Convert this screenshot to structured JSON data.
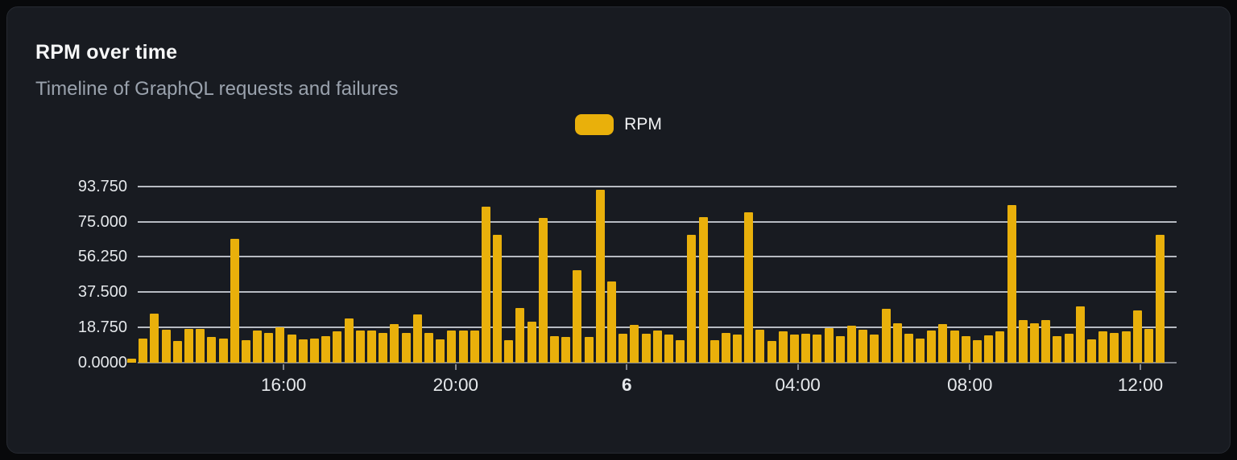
{
  "page": {
    "background_color": "#08090b"
  },
  "card": {
    "title": "RPM over time",
    "subtitle": "Timeline of GraphQL requests and failures",
    "background_color": "#181b21",
    "border_color": "#262a31"
  },
  "legend": {
    "label": "RPM",
    "swatch_color": "#e9b00b",
    "position": "top-center"
  },
  "chart_data": {
    "type": "bar",
    "title": "RPM over time",
    "subtitle": "Timeline of GraphQL requests and failures",
    "xlabel": "",
    "ylabel": "",
    "grid": "horizontal",
    "legend_position": "top-center",
    "bar_color": "#e9b00b",
    "gridline_color": "rgba(211,215,222,0.85)",
    "axis_color": "#82868e",
    "ylim": [
      0,
      96
    ],
    "y_ticks": [
      {
        "label": "0.0000",
        "value": 0
      },
      {
        "label": "18.750",
        "value": 18.75
      },
      {
        "label": "37.500",
        "value": 37.5
      },
      {
        "label": "56.250",
        "value": 56.25
      },
      {
        "label": "75.000",
        "value": 75
      },
      {
        "label": "93.750",
        "value": 93.75
      }
    ],
    "x_ticks": [
      {
        "label": "16:00",
        "pos": 0.149,
        "bold": false
      },
      {
        "label": "20:00",
        "pos": 0.313,
        "bold": false
      },
      {
        "label": "6",
        "pos": 0.476,
        "bold": true
      },
      {
        "label": "04:00",
        "pos": 0.639,
        "bold": false
      },
      {
        "label": "08:00",
        "pos": 0.803,
        "bold": false
      },
      {
        "label": "12:00",
        "pos": 0.9655,
        "bold": false
      }
    ],
    "series": [
      {
        "name": "RPM",
        "values": [
          2,
          13,
          26,
          17.5,
          11.5,
          18,
          18,
          13.5,
          13,
          66,
          12,
          17,
          16,
          19,
          15,
          12.5,
          13,
          14,
          16.5,
          23.5,
          17,
          17,
          16,
          20.5,
          16,
          25.5,
          16,
          12.5,
          17,
          17,
          17,
          83,
          68,
          12,
          29,
          22,
          77,
          14,
          13.5,
          49,
          13.5,
          92,
          43,
          15.5,
          20,
          15.5,
          17,
          15,
          12,
          68,
          77.5,
          12,
          16,
          15,
          80,
          17.5,
          11.5,
          16.5,
          15,
          15.5,
          15,
          18.5,
          14,
          19.5,
          17.5,
          15,
          28.5,
          21,
          15.5,
          13,
          17,
          20.5,
          17,
          14,
          12,
          14.5,
          16.5,
          84,
          22.5,
          21,
          22.5,
          14,
          15.5,
          30,
          12.5,
          16.5,
          16,
          16.5,
          28,
          18,
          68
        ]
      }
    ]
  }
}
